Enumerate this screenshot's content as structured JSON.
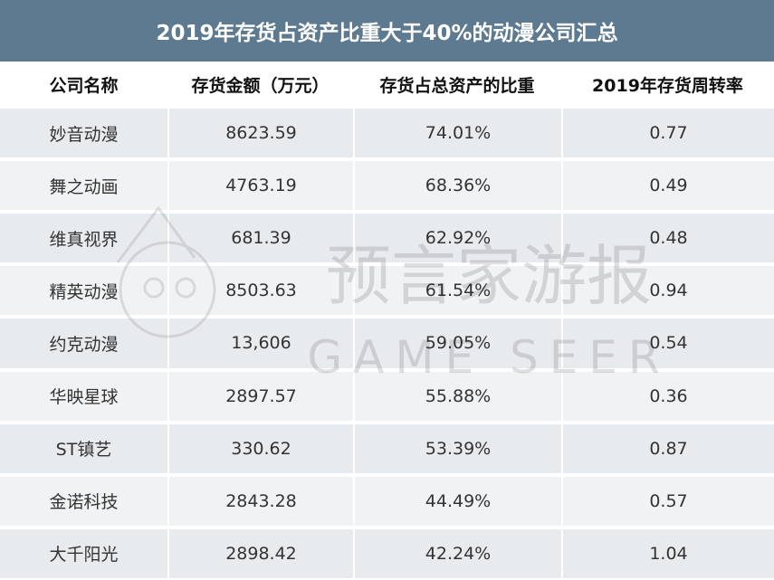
{
  "header": {
    "title": "2019年存货占资产比重大于40%的动漫公司汇总"
  },
  "table": {
    "columns": [
      "公司名称",
      "存货金额（万元）",
      "存货占总资产的比重",
      "2019年存货周转率"
    ],
    "rows": [
      [
        "妙音动漫",
        "8623.59",
        "74.01%",
        "0.77"
      ],
      [
        "舞之动画",
        "4763.19",
        "68.36%",
        "0.49"
      ],
      [
        "维真视界",
        "681.39",
        "62.92%",
        "0.48"
      ],
      [
        "精英动漫",
        "8503.63",
        "61.54%",
        "0.94"
      ],
      [
        "约克动漫",
        "13,606",
        "59.05%",
        "0.54"
      ],
      [
        "华映星球",
        "2897.57",
        "55.88%",
        "0.36"
      ],
      [
        "ST镇艺",
        "330.62",
        "53.39%",
        "0.87"
      ],
      [
        "金诺科技",
        "2843.28",
        "44.49%",
        "0.57"
      ],
      [
        "大千阳光",
        "2898.42",
        "42.24%",
        "1.04"
      ]
    ]
  },
  "watermark": {
    "name": "预言家游报",
    "subtitle": "GAME SEER"
  }
}
